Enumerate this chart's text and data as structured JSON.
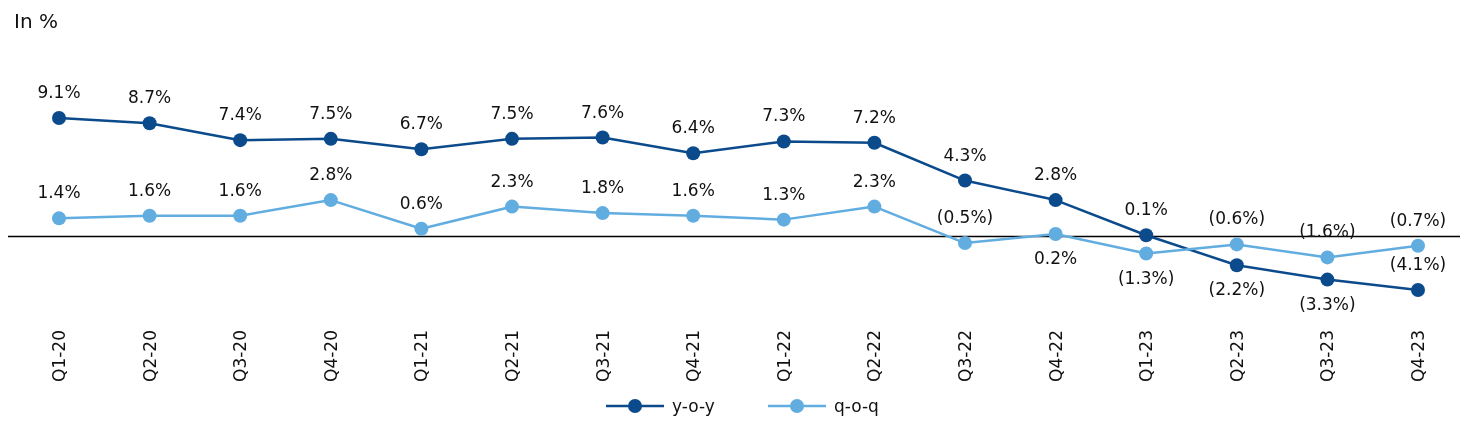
{
  "chart_data": {
    "type": "line",
    "ylabel": "In %",
    "categories": [
      "Q1-20",
      "Q2-20",
      "Q3-20",
      "Q4-20",
      "Q1-21",
      "Q2-21",
      "Q3-21",
      "Q4-21",
      "Q1-22",
      "Q2-22",
      "Q3-22",
      "Q4-22",
      "Q1-23",
      "Q2-23",
      "Q3-23",
      "Q4-23"
    ],
    "series": [
      {
        "name": "y-o-y",
        "color": "#0b4a8b",
        "values": [
          9.1,
          8.7,
          7.4,
          7.5,
          6.7,
          7.5,
          7.6,
          6.4,
          7.3,
          7.2,
          4.3,
          2.8,
          0.1,
          -2.2,
          -3.3,
          -4.1
        ],
        "value_labels": [
          "9.1%",
          "8.7%",
          "7.4%",
          "7.5%",
          "6.7%",
          "7.5%",
          "7.6%",
          "6.4%",
          "7.3%",
          "7.2%",
          "4.3%",
          "2.8%",
          "0.1%",
          "(2.2%)",
          "(3.3%)",
          "(4.1%)"
        ]
      },
      {
        "name": "q-o-q",
        "color": "#62ade0",
        "values": [
          1.4,
          1.6,
          1.6,
          2.8,
          0.6,
          2.3,
          1.8,
          1.6,
          1.3,
          2.3,
          -0.5,
          0.2,
          -1.3,
          -0.6,
          -1.6,
          -0.7
        ],
        "value_labels": [
          "1.4%",
          "1.6%",
          "1.6%",
          "2.8%",
          "0.6%",
          "2.3%",
          "1.8%",
          "1.6%",
          "1.3%",
          "2.3%",
          "(0.5%)",
          "0.2%",
          "(1.3%)",
          "(0.6%)",
          "(1.6%)",
          "(0.7%)"
        ]
      }
    ],
    "ref_lines": [
      {
        "axis": "y",
        "value": 0,
        "color": "#000000"
      }
    ],
    "legend": "bottom",
    "marker": "circle",
    "line_style": "solid"
  }
}
